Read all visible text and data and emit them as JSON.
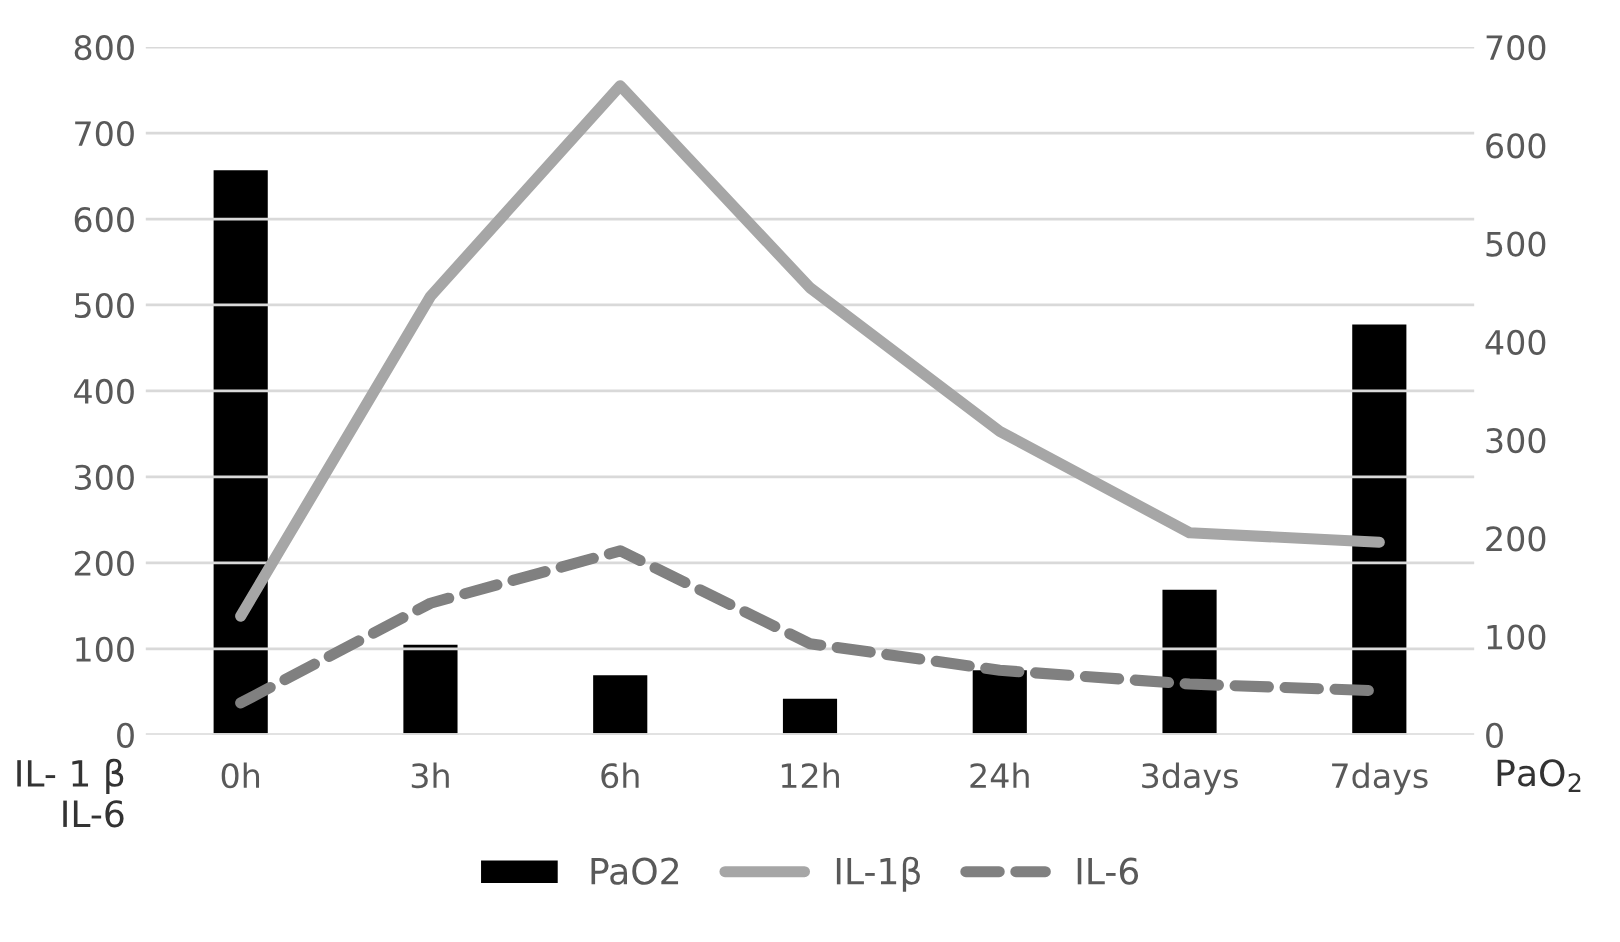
{
  "chart_data": {
    "type": "bar",
    "categories": [
      "0h",
      "3h",
      "6h",
      "12h",
      "24h",
      "3days",
      "7days"
    ],
    "series": [
      {
        "name": "PaO2",
        "axis": "y2",
        "color": "#000000",
        "values": [
          576,
          93,
          62,
          38,
          67,
          149,
          419
        ]
      },
      {
        "name": "IL-1β",
        "type": "line",
        "color": "#a6a6a6",
        "line_style": "solid",
        "values": [
          138,
          510,
          755,
          520,
          353,
          235,
          224
        ]
      },
      {
        "name": "IL-6",
        "type": "line",
        "color": "#808080",
        "line_style": "dashed",
        "values": [
          37,
          153,
          214,
          106,
          75,
          59,
          51
        ]
      }
    ],
    "ylabel": "IL- 1 β\nIL-6",
    "y2label": "PaO$_{2}$",
    "ylim": [
      0,
      800
    ],
    "yticks": [
      0,
      100,
      200,
      300,
      400,
      500,
      600,
      700,
      800
    ],
    "y2lim": [
      0,
      700
    ],
    "y2ticks": [
      0,
      100,
      200,
      300,
      400,
      500,
      600,
      700
    ],
    "grid": "y",
    "legend": "bottom"
  }
}
